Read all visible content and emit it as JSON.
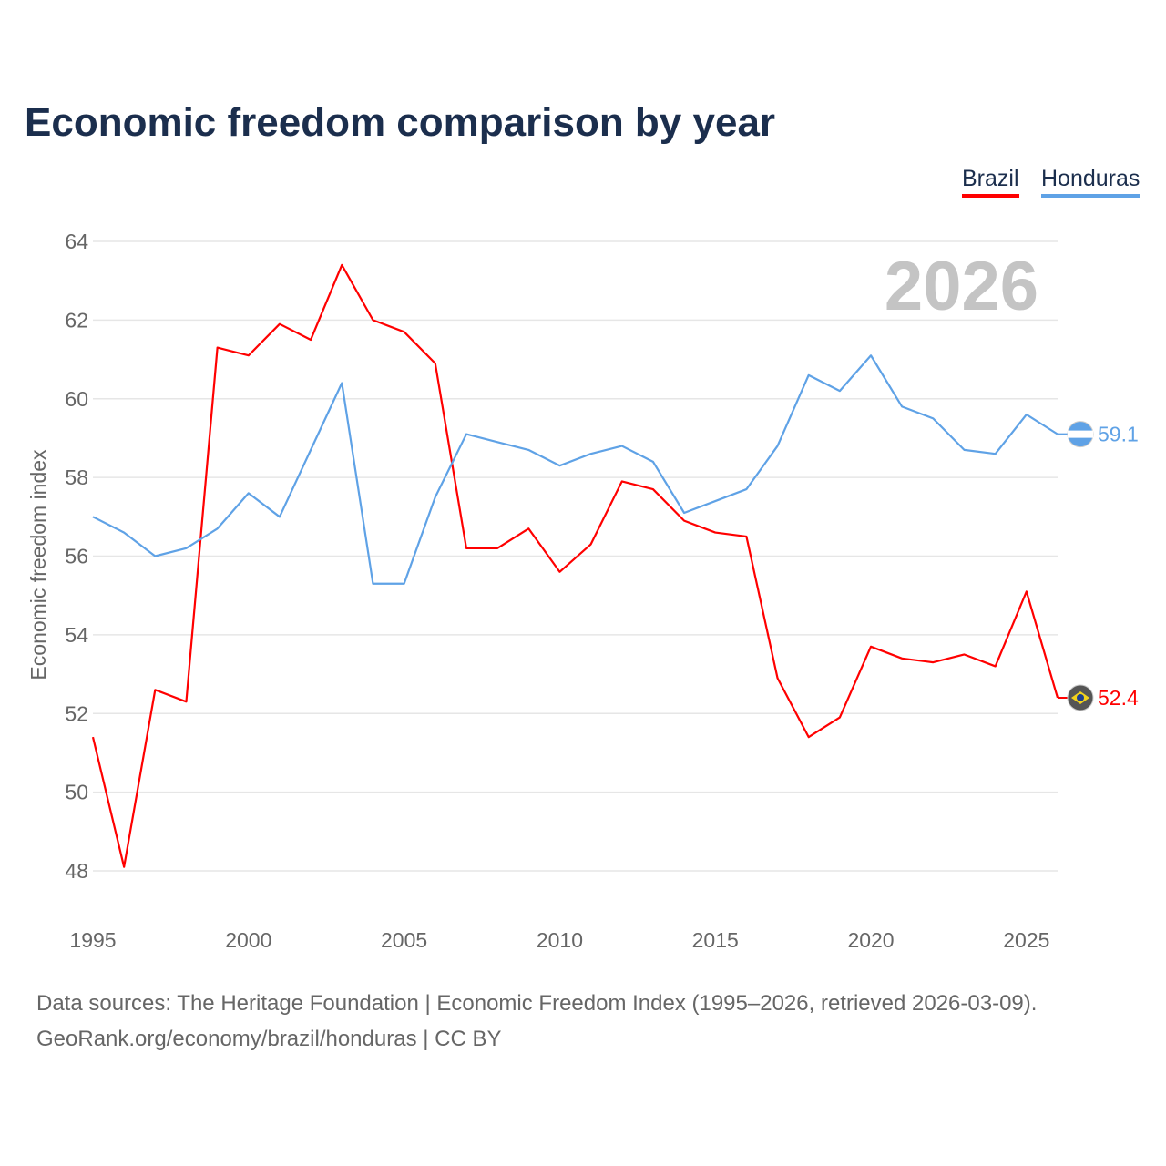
{
  "chart_data": {
    "type": "line",
    "title": "Economic freedom comparison by year",
    "ylabel": "Economic freedom index",
    "xlabel": "",
    "ylim": [
      47,
      64.5
    ],
    "xlim": [
      1995,
      2026
    ],
    "yticks": [
      48,
      50,
      52,
      54,
      56,
      58,
      60,
      62,
      64
    ],
    "xticks": [
      1995,
      2000,
      2005,
      2010,
      2015,
      2020,
      2025
    ],
    "grid": true,
    "legend_placement": "top-right",
    "watermark_year": "2026",
    "x": [
      1995,
      1996,
      1997,
      1998,
      1999,
      2000,
      2001,
      2002,
      2003,
      2004,
      2005,
      2006,
      2007,
      2008,
      2009,
      2010,
      2011,
      2012,
      2013,
      2014,
      2015,
      2016,
      2017,
      2018,
      2019,
      2020,
      2021,
      2022,
      2023,
      2024,
      2025,
      2026
    ],
    "series": [
      {
        "name": "Brazil",
        "color": "#ff0000",
        "end_label": "52.4",
        "values": [
          51.4,
          48.1,
          52.6,
          52.3,
          61.3,
          61.1,
          61.9,
          61.5,
          63.4,
          62.0,
          61.7,
          60.9,
          56.2,
          56.2,
          56.7,
          55.6,
          56.3,
          57.9,
          57.7,
          56.9,
          56.6,
          56.5,
          52.9,
          51.4,
          51.9,
          53.7,
          53.4,
          53.3,
          53.5,
          53.2,
          55.1,
          52.4
        ]
      },
      {
        "name": "Honduras",
        "color": "#5fa2e6",
        "end_label": "59.1",
        "values": [
          57.0,
          56.6,
          56.0,
          56.2,
          56.7,
          57.6,
          57.0,
          58.7,
          60.4,
          55.3,
          55.3,
          57.5,
          59.1,
          58.9,
          58.7,
          58.3,
          58.6,
          58.8,
          58.4,
          57.1,
          57.4,
          57.7,
          58.8,
          60.6,
          60.2,
          61.1,
          59.8,
          59.5,
          58.7,
          58.6,
          59.6,
          59.1
        ]
      }
    ]
  },
  "footer": {
    "line1": "Data sources: The Heritage Foundation | Economic Freedom Index (1995–2026, retrieved 2026-03-09).",
    "line2": "GeoRank.org/economy/brazil/honduras | CC BY"
  }
}
